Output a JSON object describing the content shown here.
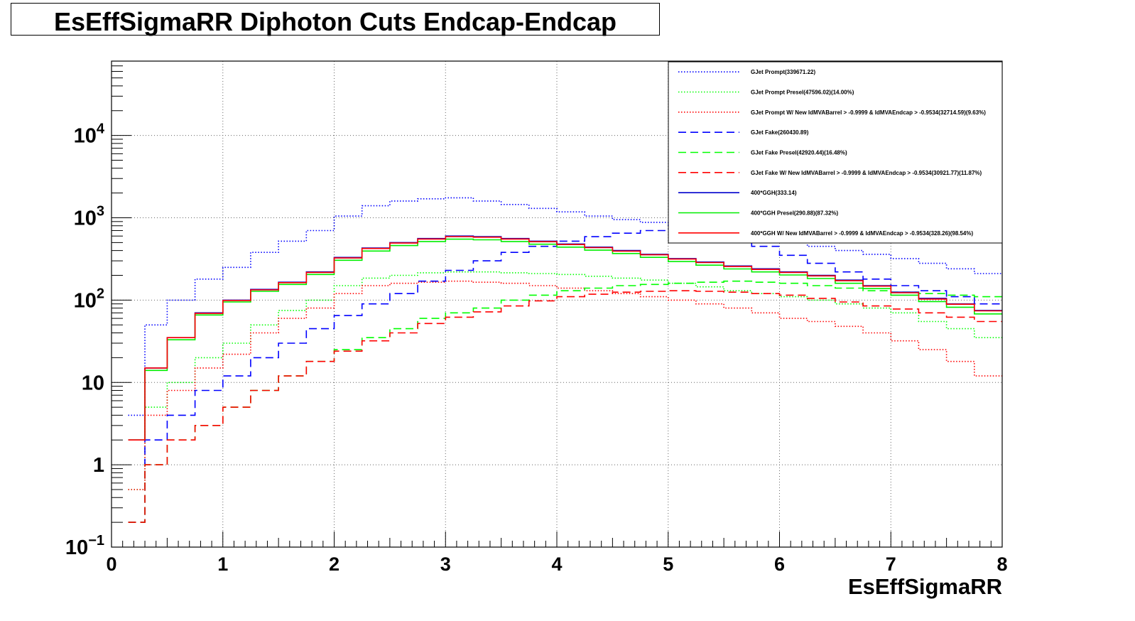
{
  "title": "EsEffSigmaRR Diphoton Cuts Endcap-Endcap",
  "chart_data": {
    "type": "line",
    "title": "EsEffSigmaRR Diphoton Cuts Endcap-Endcap",
    "xlabel": "EsEffSigmaRR",
    "ylabel": "",
    "xlim": [
      0,
      8
    ],
    "ylim": [
      0.1,
      80000
    ],
    "yscale": "log",
    "grid": true,
    "legend_position": "top-right",
    "x_ticks": [
      "0",
      "1",
      "2",
      "3",
      "4",
      "5",
      "6",
      "7",
      "8"
    ],
    "y_ticks": [
      {
        "value": 0.1,
        "label": "10",
        "sup": "−1"
      },
      {
        "value": 1,
        "label": "1",
        "sup": ""
      },
      {
        "value": 10,
        "label": "10",
        "sup": ""
      },
      {
        "value": 100,
        "label": "10",
        "sup": "2"
      },
      {
        "value": 1000,
        "label": "10",
        "sup": "3"
      },
      {
        "value": 10000,
        "label": "10",
        "sup": "4"
      }
    ],
    "x": [
      0.15,
      0.3,
      0.5,
      0.75,
      1.0,
      1.25,
      1.5,
      1.75,
      2.0,
      2.25,
      2.5,
      2.75,
      3.0,
      3.25,
      3.5,
      3.75,
      4.0,
      4.25,
      4.5,
      4.75,
      5.0,
      5.25,
      5.5,
      5.75,
      6.0,
      6.25,
      6.5,
      6.75,
      7.0,
      7.25,
      7.5,
      7.75,
      8.0
    ],
    "series": [
      {
        "name": "GJet Prompt(339671.22)",
        "color": "#0000ff",
        "style": "dotted",
        "values": [
          4,
          50,
          100,
          180,
          250,
          380,
          520,
          700,
          1050,
          1400,
          1600,
          1700,
          1750,
          1600,
          1450,
          1300,
          1180,
          1050,
          950,
          880,
          800,
          700,
          620,
          560,
          500,
          450,
          400,
          360,
          320,
          280,
          240,
          210,
          180
        ]
      },
      {
        "name": "GJet Prompt Presel(47596.02)(14.00%)",
        "color": "#00ff00",
        "style": "dotted",
        "values": [
          0.5,
          5,
          10,
          20,
          30,
          50,
          75,
          100,
          150,
          185,
          200,
          215,
          220,
          220,
          215,
          210,
          205,
          195,
          185,
          175,
          160,
          145,
          130,
          120,
          110,
          100,
          90,
          80,
          70,
          55,
          45,
          35,
          25
        ]
      },
      {
        "name": "GJet Prompt W/ New IdMVABarrel > -0.9999 & IdMVAEndcap > -0.9534(32714.59)(9.63%)",
        "color": "#ff0000",
        "style": "dotted",
        "values": [
          0.5,
          4,
          8,
          15,
          22,
          40,
          60,
          80,
          120,
          150,
          160,
          165,
          170,
          165,
          160,
          150,
          140,
          130,
          120,
          110,
          100,
          90,
          80,
          70,
          60,
          55,
          48,
          40,
          32,
          25,
          18,
          12,
          8
        ]
      },
      {
        "name": "GJet Fake(260430.89)",
        "color": "#0000ff",
        "style": "dashed",
        "values": [
          0.2,
          2,
          4,
          8,
          12,
          20,
          30,
          45,
          65,
          90,
          120,
          170,
          230,
          300,
          380,
          450,
          520,
          590,
          650,
          700,
          730,
          650,
          550,
          450,
          350,
          280,
          220,
          180,
          150,
          130,
          110,
          90,
          75
        ]
      },
      {
        "name": "GJet Fake Presel(42920.44)(16.48%)",
        "color": "#00ff00",
        "style": "dashed",
        "values": [
          0.2,
          1,
          2,
          3,
          5,
          8,
          12,
          18,
          25,
          35,
          45,
          60,
          70,
          80,
          100,
          115,
          130,
          140,
          150,
          155,
          160,
          165,
          170,
          165,
          160,
          150,
          140,
          130,
          125,
          120,
          115,
          110,
          105
        ]
      },
      {
        "name": "GJet Fake W/ New IdMVABarrel > -0.9999 & IdMVAEndcap > -0.9534(30921.77)(11.87%)",
        "color": "#ff0000",
        "style": "dashed",
        "values": [
          0.2,
          1,
          2,
          3,
          5,
          8,
          12,
          18,
          24,
          32,
          40,
          52,
          62,
          72,
          85,
          98,
          110,
          118,
          125,
          128,
          130,
          128,
          125,
          120,
          115,
          105,
          95,
          85,
          78,
          70,
          62,
          55,
          48
        ]
      },
      {
        "name": "400*GGH(333.14)",
        "color": "#0000cc",
        "style": "solid",
        "values": [
          2,
          15,
          35,
          70,
          100,
          135,
          165,
          220,
          330,
          430,
          500,
          560,
          600,
          590,
          560,
          520,
          480,
          440,
          400,
          360,
          320,
          290,
          260,
          240,
          220,
          200,
          175,
          150,
          125,
          105,
          90,
          75,
          60
        ]
      },
      {
        "name": "400*GGH Presel(290.88)(87.32%)",
        "color": "#00ee00",
        "style": "solid",
        "values": [
          2,
          14,
          33,
          66,
          95,
          128,
          155,
          205,
          305,
          395,
          460,
          515,
          550,
          540,
          515,
          478,
          440,
          404,
          368,
          331,
          294,
          266,
          239,
          220,
          202,
          183,
          160,
          138,
          115,
          96,
          82,
          68,
          55
        ]
      },
      {
        "name": "400*GGH W/ New IdMVABarrel > -0.9999 & IdMVAEndcap > -0.9534(328.26)(98.54%)",
        "color": "#ff0000",
        "style": "solid",
        "values": [
          2,
          15,
          35,
          69,
          99,
          133,
          163,
          217,
          325,
          424,
          493,
          552,
          591,
          581,
          552,
          512,
          473,
          434,
          394,
          355,
          315,
          286,
          256,
          236,
          217,
          197,
          172,
          148,
          123,
          103,
          89,
          74,
          59
        ]
      }
    ]
  }
}
